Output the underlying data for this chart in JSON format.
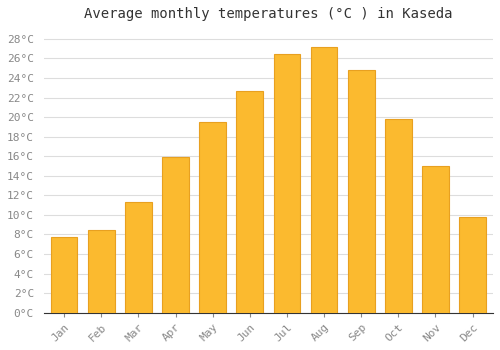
{
  "title": "Average monthly temperatures (°C ) in Kaseda",
  "months": [
    "Jan",
    "Feb",
    "Mar",
    "Apr",
    "May",
    "Jun",
    "Jul",
    "Aug",
    "Sep",
    "Oct",
    "Nov",
    "Dec"
  ],
  "temperatures": [
    7.7,
    8.5,
    11.3,
    15.9,
    19.5,
    22.7,
    26.5,
    27.2,
    24.8,
    19.8,
    15.0,
    9.8
  ],
  "bar_color": "#FBBA2F",
  "bar_edge_color": "#E8A020",
  "background_color": "#FFFFFF",
  "plot_bg_color": "#FFFFFF",
  "grid_color": "#DDDDDD",
  "tick_label_color": "#888888",
  "title_color": "#333333",
  "ylim": [
    0,
    29
  ],
  "ytick_step": 2,
  "title_fontsize": 10,
  "tick_fontsize": 8
}
